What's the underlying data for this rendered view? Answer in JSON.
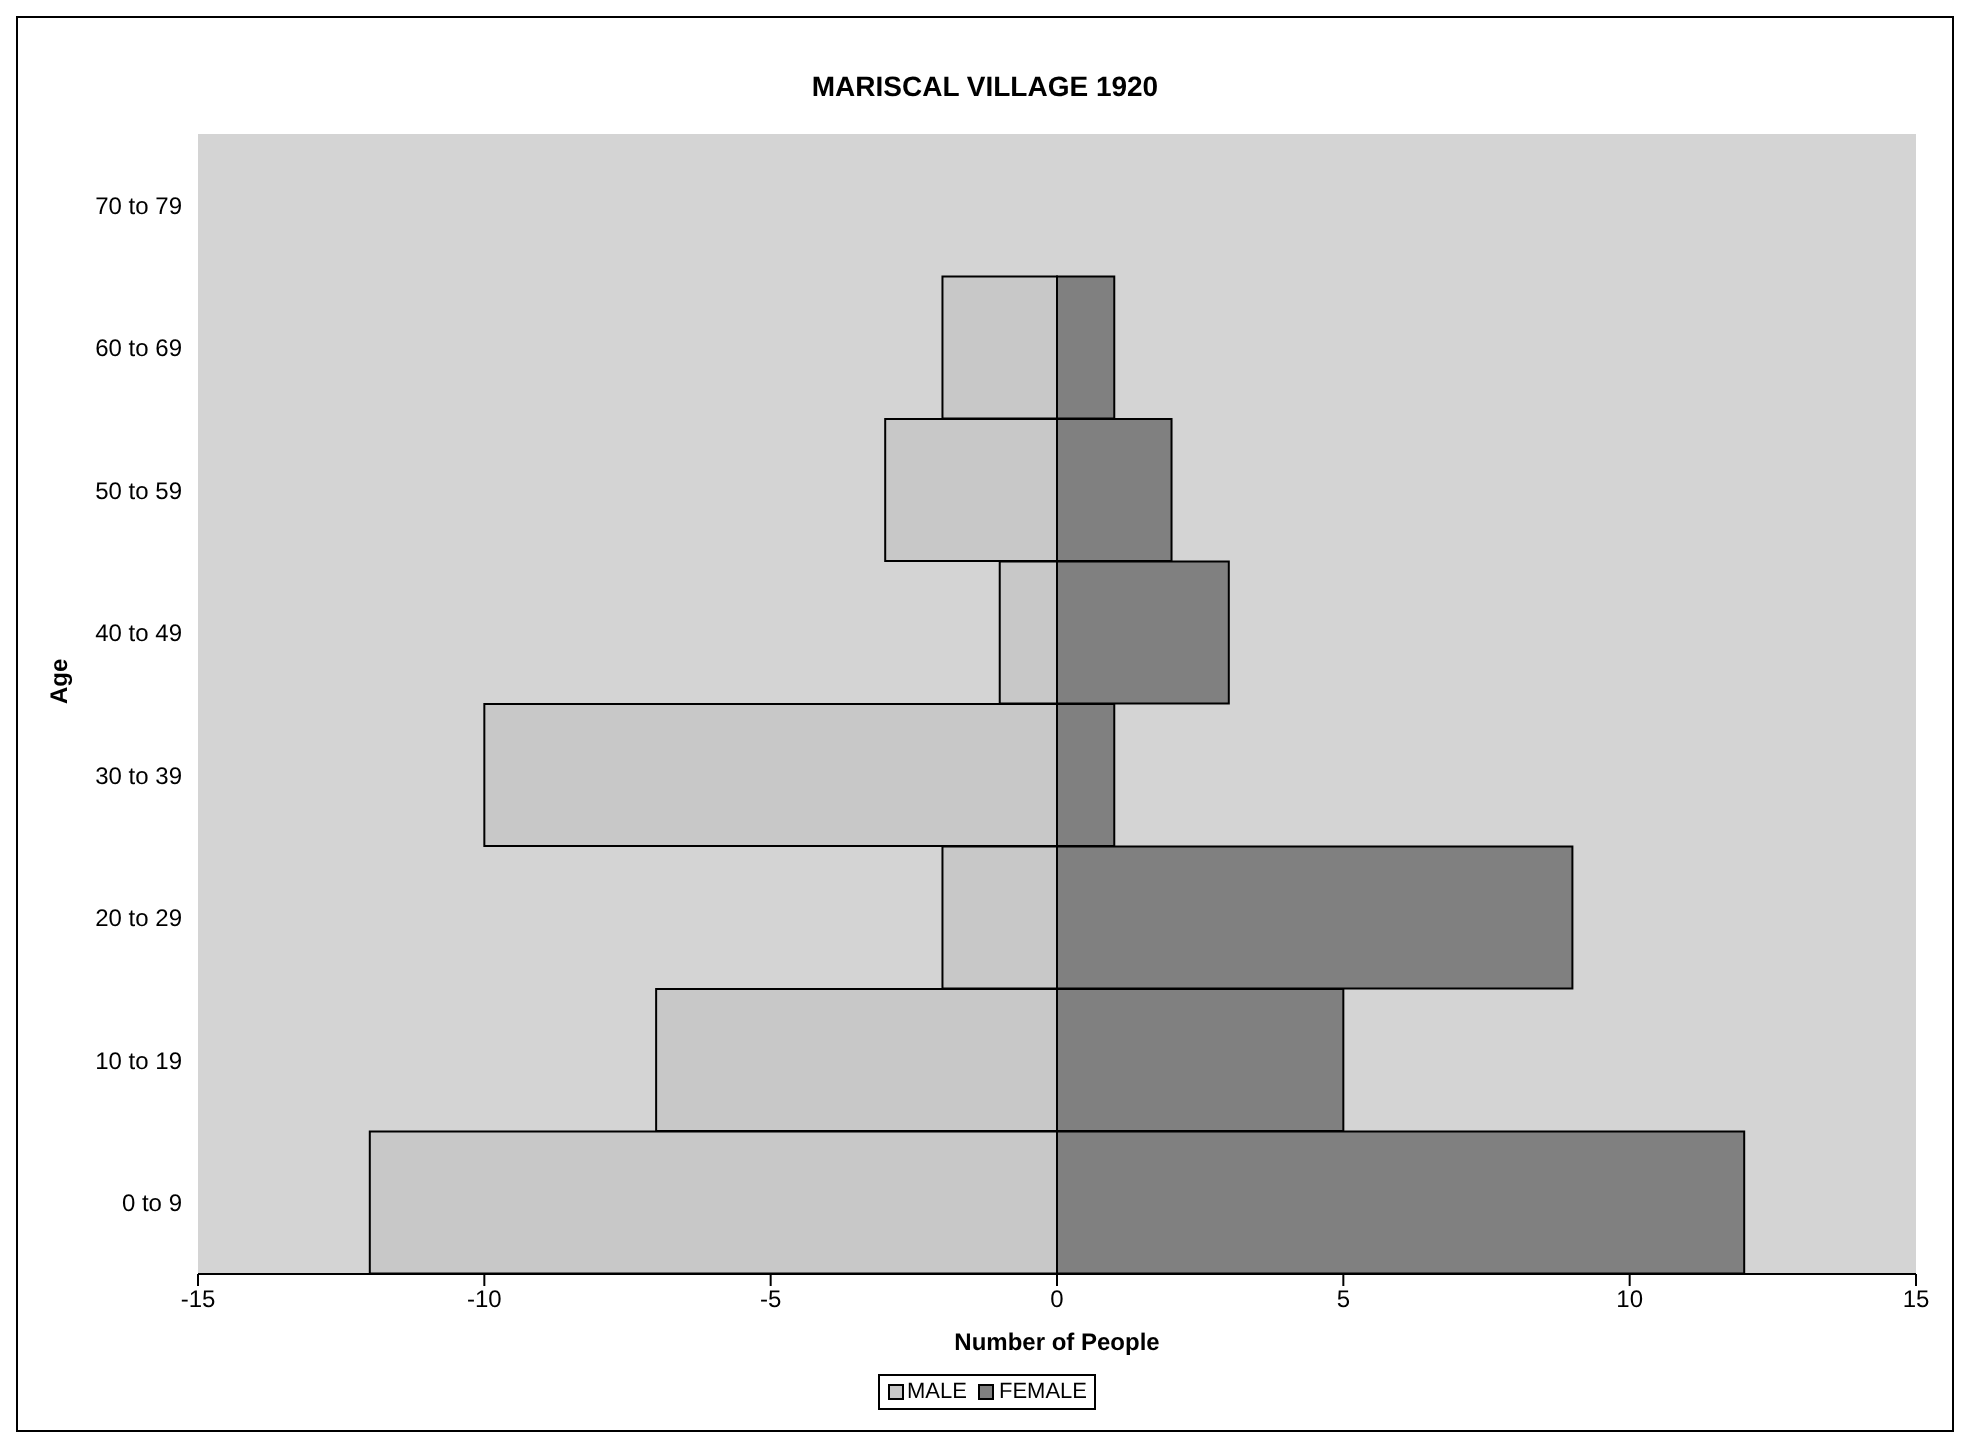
{
  "chart_data": {
    "type": "bar",
    "orientation": "horizontal",
    "stacked": true,
    "title": "MARISCAL VILLAGE 1920",
    "xlabel": "Number of People",
    "ylabel": "Age",
    "categories": [
      "70 to 79",
      "60 to 69",
      "50 to 59",
      "40 to 49",
      "30 to 39",
      "20 to 29",
      "10 to 19",
      "0 to 9"
    ],
    "series": [
      {
        "name": "MALE",
        "color": "#c8c8c8",
        "values": [
          0,
          -2,
          -3,
          -1,
          -10,
          -2,
          -7,
          -12
        ]
      },
      {
        "name": "FEMALE",
        "color": "#808080",
        "values": [
          0,
          1,
          2,
          3,
          1,
          9,
          5,
          12
        ]
      }
    ],
    "xlim": [
      -15,
      15
    ],
    "xticks": [
      -15,
      -10,
      -5,
      0,
      5,
      10,
      15
    ],
    "grid": false,
    "legend": "bottom"
  }
}
